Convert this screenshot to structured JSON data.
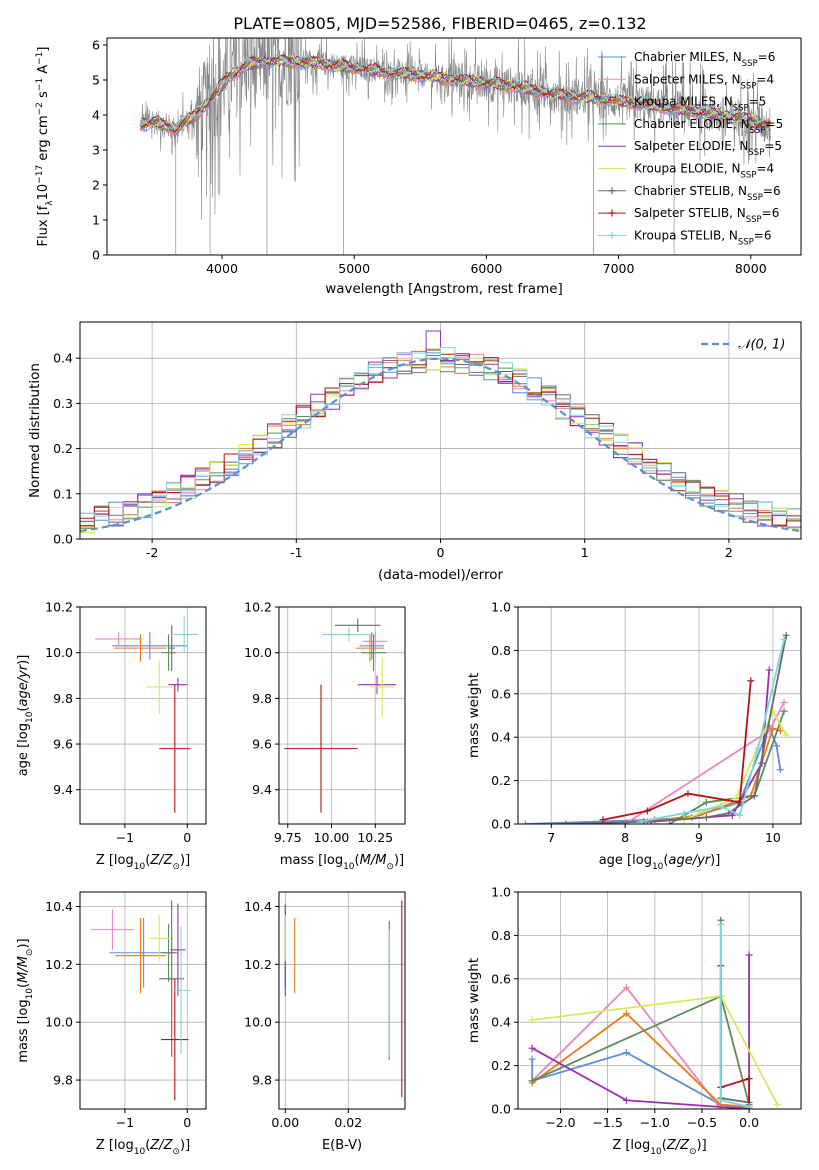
{
  "figure": {
    "suptitle": "PLATE=0805, MJD=52586, FIBERID=0465, z=0.132"
  },
  "palette": {
    "Chabrier MILES": "#5b8fd9",
    "Salpeter MILES": "#ea85c4",
    "Kroupa MILES": "#ec7a1c",
    "Chabrier ELODIE": "#5e8a5e",
    "Salpeter ELODIE": "#9a2fb5",
    "Kroupa ELODIE": "#d6ea5a",
    "Chabrier STELIB": "#6b6b6b",
    "Salpeter STELIB": "#b31515",
    "Kroupa STELIB": "#7fd6dc"
  },
  "chart_data": [
    {
      "id": "spectrum",
      "type": "line",
      "title": "PLATE=0805, MJD=52586, FIBERID=0465, z=0.132",
      "xlabel": "wavelength [Angstrom, rest frame]",
      "ylabel": "Flux [f$_\\lambda$10$^{-17}$ erg cm$^{-2}$ s$^{-1}$ A$^{-1}$]",
      "ylabel_parts": [
        "Flux [f",
        "λ",
        "10",
        "−17",
        " erg cm",
        "−2",
        " s",
        "−1",
        " A",
        "−1",
        "]"
      ],
      "xlim": [
        3130,
        8380
      ],
      "ylim": [
        0,
        6.2
      ],
      "xticks": [
        4000,
        5000,
        6000,
        7000,
        8000
      ],
      "yticks": [
        0,
        1,
        2,
        3,
        4,
        5,
        6
      ],
      "legend_position": "upper-right",
      "legend": [
        {
          "name": "Chabrier MILES",
          "sub": "SSP",
          "n": "6"
        },
        {
          "name": "Salpeter MILES",
          "sub": "SSP",
          "n": "4"
        },
        {
          "name": "Kroupa MILES",
          "sub": "SSP",
          "n": "5"
        },
        {
          "name": "Chabrier ELODIE",
          "sub": "SSP",
          "n": "5"
        },
        {
          "name": "Salpeter ELODIE",
          "sub": "SSP",
          "n": "5"
        },
        {
          "name": "Kroupa ELODIE",
          "sub": "SSP",
          "n": "4"
        },
        {
          "name": "Chabrier STELIB",
          "sub": "SSP",
          "n": "6"
        },
        {
          "name": "Salpeter STELIB",
          "sub": "SSP",
          "n": "6"
        },
        {
          "name": "Kroupa STELIB",
          "sub": "SSP",
          "n": "6"
        }
      ],
      "continuum": {
        "wavelength": [
          3380,
          3500,
          3650,
          3800,
          3950,
          4050,
          4200,
          4400,
          4700,
          5000,
          5300,
          5600,
          5900,
          6200,
          6500,
          6800,
          7100,
          7400,
          7700,
          8000,
          8150
        ],
        "flux": [
          3.75,
          3.8,
          3.6,
          4.0,
          4.6,
          5.1,
          5.45,
          5.55,
          5.5,
          5.35,
          5.2,
          5.1,
          4.95,
          4.85,
          4.6,
          4.5,
          4.35,
          4.2,
          4.05,
          3.85,
          3.7
        ]
      }
    },
    {
      "id": "residuals",
      "type": "histogram",
      "xlabel": "(data-model)/error",
      "ylabel": "Normed distribution",
      "xlim": [
        -2.5,
        2.5
      ],
      "ylim": [
        0,
        0.48
      ],
      "xticks": [
        -2,
        -1,
        0,
        1,
        2
      ],
      "yticks": [
        0.0,
        0.1,
        0.2,
        0.3,
        0.4
      ],
      "ytick_labels": [
        "0.0",
        "0.1",
        "0.2",
        "0.3",
        "0.4"
      ],
      "bin_width": 0.1,
      "legend": [
        {
          "name": "$\\mathcal{N}(0,1)$",
          "display": "𝒩(0, 1)"
        }
      ],
      "legend_position": "upper-right",
      "reference_curve": {
        "name": "N(0,1)",
        "mean": 0,
        "std": 1,
        "color": "#5b8fd9"
      }
    },
    {
      "id": "age-vs-Z",
      "type": "scatter",
      "xlabel": "Z [log$_{10}$(Z/Z$_\\odot$)]",
      "ylabel": "age  [log$_{10}$(age/yr)]",
      "xlim": [
        -1.72,
        0.3
      ],
      "ylim": [
        9.25,
        10.2
      ],
      "xticks": [
        -1,
        0
      ],
      "xtick_labels": [
        "−1",
        "0"
      ],
      "yticks": [
        9.4,
        9.6,
        9.8,
        10.0,
        10.2
      ],
      "ytick_labels": [
        "9.4",
        "9.6",
        "9.8",
        "10.0",
        "10.2"
      ],
      "points": [
        {
          "series": "Chabrier MILES",
          "x": -0.6,
          "xerr": 0.6,
          "y": 10.03,
          "yerr": 0.06
        },
        {
          "series": "Salpeter MILES",
          "x": -1.1,
          "xerr": 0.38,
          "y": 10.06,
          "yerr": 0.03
        },
        {
          "series": "Kroupa MILES",
          "x": -0.75,
          "xerr": 0.42,
          "y": 10.02,
          "yerr": 0.06
        },
        {
          "series": "Chabrier ELODIE",
          "x": -0.3,
          "xerr": 0.12,
          "y": 10.0,
          "yerr": 0.08
        },
        {
          "series": "Salpeter ELODIE",
          "x": -0.15,
          "xerr": 0.15,
          "y": 9.86,
          "yerr": 0.03
        },
        {
          "series": "Kroupa ELODIE",
          "x": -0.45,
          "xerr": 0.2,
          "y": 9.85,
          "yerr": 0.12
        },
        {
          "series": "Chabrier STELIB",
          "x": -0.25,
          "xerr": 0.05,
          "y": 10.02,
          "yerr": 0.1
        },
        {
          "series": "Salpeter STELIB",
          "x": -0.2,
          "xerr": 0.25,
          "y": 9.58,
          "yerr": 0.28
        },
        {
          "series": "Kroupa STELIB",
          "x": -0.05,
          "xerr": 0.22,
          "y": 10.08,
          "yerr": 0.08
        }
      ]
    },
    {
      "id": "age-vs-mass",
      "type": "scatter",
      "xlabel": "mass [log$_{10}$(M/M$_\\odot$)]",
      "ylabel": "",
      "xlim": [
        9.7,
        10.42
      ],
      "ylim": [
        9.25,
        10.2
      ],
      "xticks": [
        9.75,
        10.0,
        10.25
      ],
      "xtick_labels": [
        "9.75",
        "10.00",
        "10.25"
      ],
      "yticks": [
        9.4,
        9.6,
        9.8,
        10.0,
        10.2
      ],
      "ytick_labels": [
        "9.4",
        "9.6",
        "9.8",
        "10.0",
        "10.2"
      ],
      "points": [
        {
          "series": "Chabrier MILES",
          "x": 10.23,
          "xerr": 0.07,
          "y": 10.03,
          "yerr": 0.06
        },
        {
          "series": "Salpeter MILES",
          "x": 10.25,
          "xerr": 0.07,
          "y": 10.05,
          "yerr": 0.04
        },
        {
          "series": "Kroupa MILES",
          "x": 10.22,
          "xerr": 0.08,
          "y": 10.02,
          "yerr": 0.06
        },
        {
          "series": "Chabrier ELODIE",
          "x": 10.24,
          "xerr": 0.07,
          "y": 10.0,
          "yerr": 0.08
        },
        {
          "series": "Salpeter ELODIE",
          "x": 10.26,
          "xerr": 0.11,
          "y": 9.86,
          "yerr": 0.04
        },
        {
          "series": "Kroupa ELODIE",
          "x": 10.29,
          "xerr": 0.07,
          "y": 9.85,
          "yerr": 0.13
        },
        {
          "series": "Chabrier STELIB",
          "x": 10.15,
          "xerr": 0.13,
          "y": 10.12,
          "yerr": 0.03
        },
        {
          "series": "Salpeter STELIB",
          "x": 9.94,
          "xerr": 0.21,
          "y": 9.58,
          "yerr": 0.28
        },
        {
          "series": "Kroupa STELIB",
          "x": 10.1,
          "xerr": 0.15,
          "y": 10.08,
          "yerr": 0.03
        }
      ]
    },
    {
      "id": "weight-vs-age",
      "type": "line",
      "xlabel": "age  [log$_{10}$(age/yr)]",
      "ylabel": "mass weight",
      "xlim": [
        6.55,
        10.38
      ],
      "ylim": [
        0,
        1.0
      ],
      "xticks": [
        7,
        8,
        9,
        10
      ],
      "yticks": [
        0.0,
        0.2,
        0.4,
        0.6,
        0.8,
        1.0
      ],
      "ytick_labels": [
        "0.0",
        "0.2",
        "0.4",
        "0.6",
        "0.8",
        "1.0"
      ],
      "series": [
        {
          "name": "Chabrier MILES",
          "x": [
            6.65,
            8.4,
            8.9,
            9.55,
            9.95,
            10.05,
            10.1
          ],
          "y": [
            0.0,
            0.02,
            0.03,
            0.1,
            0.45,
            0.36,
            0.25
          ]
        },
        {
          "name": "Salpeter MILES",
          "x": [
            8.0,
            9.95,
            10.15
          ],
          "y": [
            0.0,
            0.43,
            0.56
          ]
        },
        {
          "name": "Kroupa MILES",
          "x": [
            8.3,
            9.0,
            9.7,
            10.0,
            10.1
          ],
          "y": [
            0.01,
            0.04,
            0.13,
            0.44,
            0.43
          ]
        },
        {
          "name": "Chabrier ELODIE",
          "x": [
            8.6,
            9.1,
            9.75,
            10.15
          ],
          "y": [
            0.0,
            0.1,
            0.13,
            0.52
          ]
        },
        {
          "name": "Salpeter ELODIE",
          "x": [
            8.35,
            9.45,
            9.85,
            9.95
          ],
          "y": [
            0.01,
            0.04,
            0.28,
            0.71
          ]
        },
        {
          "name": "Kroupa ELODIE",
          "x": [
            8.8,
            9.5,
            10.0,
            10.18
          ],
          "y": [
            0.02,
            0.12,
            0.52,
            0.41
          ]
        },
        {
          "name": "Chabrier STELIB",
          "x": [
            7.2,
            8.25,
            9.1,
            9.4,
            9.75,
            10.18
          ],
          "y": [
            0.0,
            0.01,
            0.03,
            0.05,
            0.13,
            0.87
          ]
        },
        {
          "name": "Salpeter STELIB",
          "x": [
            7.7,
            8.3,
            8.85,
            9.55,
            9.7
          ],
          "y": [
            0.02,
            0.06,
            0.14,
            0.1,
            0.66
          ]
        },
        {
          "name": "Kroupa STELIB",
          "x": [
            8.2,
            8.8,
            9.3,
            9.55,
            9.8,
            10.15
          ],
          "y": [
            0.01,
            0.05,
            0.08,
            0.04,
            0.35,
            0.85
          ]
        }
      ]
    },
    {
      "id": "mass-vs-Z",
      "type": "scatter",
      "xlabel": "Z [log$_{10}$(Z/Z$_\\odot$)]",
      "ylabel": "mass [log$_{10}$(M/M$_\\odot$)]",
      "xlim": [
        -1.72,
        0.3
      ],
      "ylim": [
        9.7,
        10.45
      ],
      "xticks": [
        -1,
        0
      ],
      "xtick_labels": [
        "−1",
        "0"
      ],
      "yticks": [
        9.8,
        10.0,
        10.2,
        10.4
      ],
      "ytick_labels": [
        "9.8",
        "10.0",
        "10.2",
        "10.4"
      ],
      "points": [
        {
          "series": "Chabrier MILES",
          "x": -0.7,
          "xerr": 0.55,
          "y": 10.24,
          "yerr": 0.12
        },
        {
          "series": "Salpeter MILES",
          "x": -1.2,
          "xerr": 0.35,
          "y": 10.32,
          "yerr": 0.07
        },
        {
          "series": "Kroupa MILES",
          "x": -0.75,
          "xerr": 0.4,
          "y": 10.23,
          "yerr": 0.13
        },
        {
          "series": "Chabrier ELODIE",
          "x": -0.3,
          "xerr": 0.12,
          "y": 10.24,
          "yerr": 0.1
        },
        {
          "series": "Salpeter ELODIE",
          "x": -0.15,
          "xerr": 0.12,
          "y": 10.25,
          "yerr": 0.16
        },
        {
          "series": "Kroupa ELODIE",
          "x": -0.45,
          "xerr": 0.18,
          "y": 10.29,
          "yerr": 0.08
        },
        {
          "series": "Chabrier STELIB",
          "x": -0.25,
          "xerr": 0.2,
          "y": 10.15,
          "yerr": 0.27
        },
        {
          "series": "Salpeter STELIB",
          "x": -0.2,
          "xerr": 0.22,
          "y": 9.94,
          "yerr": 0.21
        },
        {
          "series": "Kroupa STELIB",
          "x": -0.1,
          "xerr": 0.15,
          "y": 10.11,
          "yerr": 0.22
        }
      ]
    },
    {
      "id": "mass-vs-EBV",
      "type": "scatter",
      "xlabel": "E(B-V)",
      "ylabel": "",
      "xlim": [
        -0.002,
        0.038
      ],
      "ylim": [
        9.7,
        10.45
      ],
      "xticks": [
        0.0,
        0.02
      ],
      "xtick_labels": [
        "0.00",
        "0.02"
      ],
      "yticks": [
        9.8,
        10.0,
        10.2,
        10.4
      ],
      "ytick_labels": [
        "9.8",
        "10.0",
        "10.2",
        "10.4"
      ],
      "points": [
        {
          "series": "Chabrier MILES",
          "x": 0.0,
          "y": 10.24,
          "yerr": 0.12
        },
        {
          "series": "Salpeter MILES",
          "x": 0.0,
          "y": 10.32,
          "yerr": 0.07
        },
        {
          "series": "Kroupa MILES",
          "x": 0.003,
          "y": 10.23,
          "yerr": 0.13
        },
        {
          "series": "Chabrier ELODIE",
          "x": 0.0,
          "y": 10.22,
          "yerr": 0.1
        },
        {
          "series": "Salpeter ELODIE",
          "x": 0.0,
          "y": 10.25,
          "yerr": 0.16
        },
        {
          "series": "Kroupa ELODIE",
          "x": 0.0,
          "y": 10.29,
          "yerr": 0.08
        },
        {
          "series": "Chabrier STELIB",
          "x": 0.033,
          "y": 10.11,
          "yerr": 0.24
        },
        {
          "series": "Salpeter STELIB",
          "x": 0.037,
          "y": 10.08,
          "yerr": 0.34
        },
        {
          "series": "Kroupa STELIB",
          "x": 0.033,
          "y": 10.1,
          "yerr": 0.22
        }
      ]
    },
    {
      "id": "weight-vs-Z",
      "type": "line",
      "xlabel": "Z [log$_{10}$(Z/Z$_\\odot$)]",
      "ylabel": "mass weight",
      "xlim": [
        -2.45,
        0.55
      ],
      "ylim": [
        0,
        1.0
      ],
      "xticks": [
        -2.0,
        -1.5,
        -1.0,
        -0.5,
        0.0
      ],
      "xtick_labels": [
        "−2.0",
        "−1.5",
        "−1.0",
        "−0.5",
        "0.0"
      ],
      "yticks": [
        0.0,
        0.2,
        0.4,
        0.6,
        0.8,
        1.0
      ],
      "ytick_labels": [
        "0.0",
        "0.2",
        "0.4",
        "0.6",
        "0.8",
        "1.0"
      ],
      "series": [
        {
          "name": "Chabrier MILES",
          "x": [
            -2.3,
            -2.3,
            -1.3,
            -0.3,
            0.0
          ],
          "y": [
            0.23,
            0.13,
            0.26,
            0.02,
            0.0
          ]
        },
        {
          "name": "Salpeter MILES",
          "x": [
            -2.3,
            -1.3,
            -0.3
          ],
          "y": [
            0.13,
            0.56,
            0.0
          ]
        },
        {
          "name": "Kroupa MILES",
          "x": [
            -2.3,
            -1.3,
            -0.3,
            0.0
          ],
          "y": [
            0.12,
            0.44,
            0.02,
            0.01
          ]
        },
        {
          "name": "Chabrier ELODIE",
          "x": [
            -2.3,
            -0.3,
            0.0
          ],
          "y": [
            0.13,
            0.52,
            0.02
          ]
        },
        {
          "name": "Salpeter ELODIE",
          "x": [
            -2.3,
            -1.3,
            0.0,
            0.0
          ],
          "y": [
            0.28,
            0.04,
            0.0,
            0.71
          ]
        },
        {
          "name": "Kroupa ELODIE",
          "x": [
            -2.3,
            -0.3,
            0.3
          ],
          "y": [
            0.41,
            0.52,
            0.02
          ]
        },
        {
          "name": "Chabrier STELIB",
          "x": [
            -0.3,
            -0.3,
            0.0
          ],
          "y": [
            0.87,
            0.05,
            0.03
          ]
        },
        {
          "name": "Salpeter STELIB",
          "x": [
            -0.3,
            -0.3,
            0.0,
            0.0
          ],
          "y": [
            0.66,
            0.1,
            0.14,
            0.0
          ]
        },
        {
          "name": "Kroupa STELIB",
          "x": [
            -0.3,
            -0.3,
            0.0
          ],
          "y": [
            0.85,
            0.04,
            0.01
          ]
        }
      ]
    }
  ]
}
